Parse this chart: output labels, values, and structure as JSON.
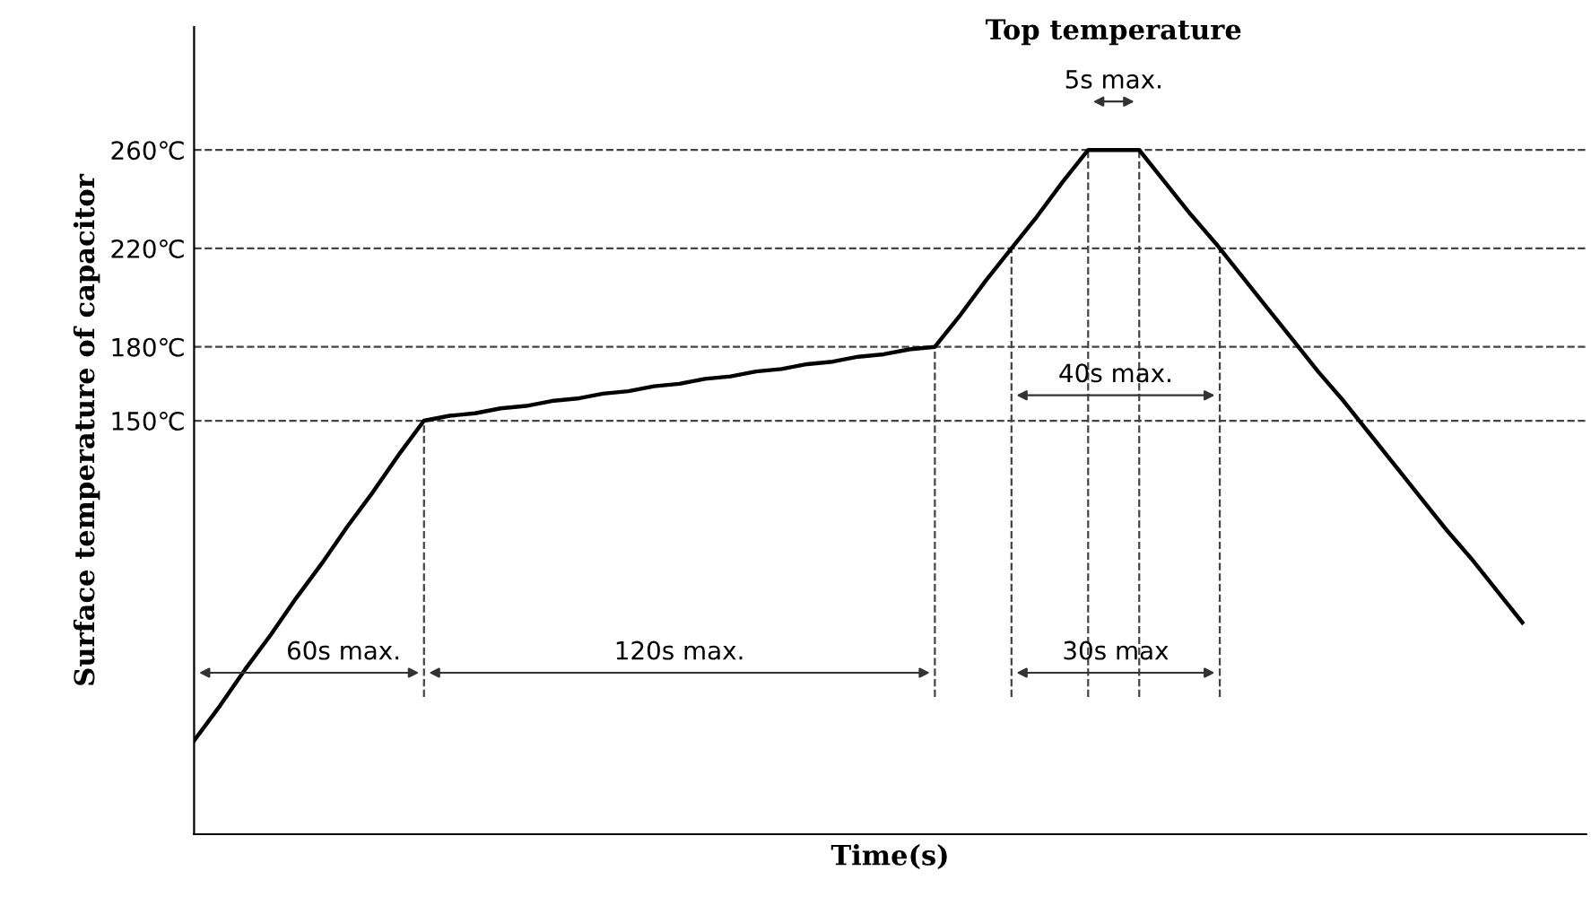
{
  "chart_data": {
    "type": "line",
    "xlabel": "Time(s)",
    "ylabel": "Surface temperature of capacitor",
    "categories": [
      null,
      null,
      null,
      null,
      null,
      null,
      null,
      null,
      null,
      null,
      null,
      null,
      null,
      null,
      null,
      null,
      null,
      null,
      null,
      null,
      null,
      null,
      null,
      null,
      null,
      null,
      null,
      null,
      null,
      null,
      null,
      null,
      null,
      null,
      null,
      null,
      null,
      null,
      null,
      null,
      null,
      null,
      null,
      null,
      null,
      null,
      null,
      null,
      null,
      null,
      null,
      null,
      null
    ],
    "series": [
      {
        "color": "#000000",
        "values": [
          20,
          34,
          49,
          63,
          78,
          92,
          107,
          121,
          136,
          150,
          152,
          153,
          155,
          156,
          158,
          159,
          161,
          162,
          164,
          165,
          167,
          168,
          170,
          171,
          173,
          174,
          176,
          177,
          179,
          180,
          193,
          207,
          220,
          233,
          247,
          260,
          260,
          260,
          247,
          234,
          222,
          209,
          196,
          183,
          170,
          158,
          145,
          132,
          119,
          106,
          94,
          81,
          68
        ]
      }
    ],
    "ylim": [
      -18,
      310
    ],
    "yticks": [
      {
        "value": 150,
        "label": "150℃"
      },
      {
        "value": 180,
        "label": "180℃"
      },
      {
        "value": 220,
        "label": "220℃"
      },
      {
        "value": 260,
        "label": "260℃"
      }
    ],
    "tick_labels": "y",
    "grid": false,
    "marker": "none",
    "line_style": "solid",
    "ref_lines": [
      {
        "axis": "y",
        "value": 150,
        "label": null,
        "line_style": "dashed",
        "color": "#444444"
      },
      {
        "axis": "y",
        "value": 180,
        "label": null,
        "line_style": "dashed",
        "color": "#444444"
      },
      {
        "axis": "y",
        "value": 220,
        "label": null,
        "line_style": "dashed",
        "color": "#444444"
      },
      {
        "axis": "y",
        "value": 260,
        "label": null,
        "line_style": "dashed",
        "color": "#444444"
      }
    ],
    "annotations": [
      "60s max.",
      "120s max.",
      "30s max",
      "40s max.",
      "5s max.",
      "Top temperature"
    ]
  }
}
